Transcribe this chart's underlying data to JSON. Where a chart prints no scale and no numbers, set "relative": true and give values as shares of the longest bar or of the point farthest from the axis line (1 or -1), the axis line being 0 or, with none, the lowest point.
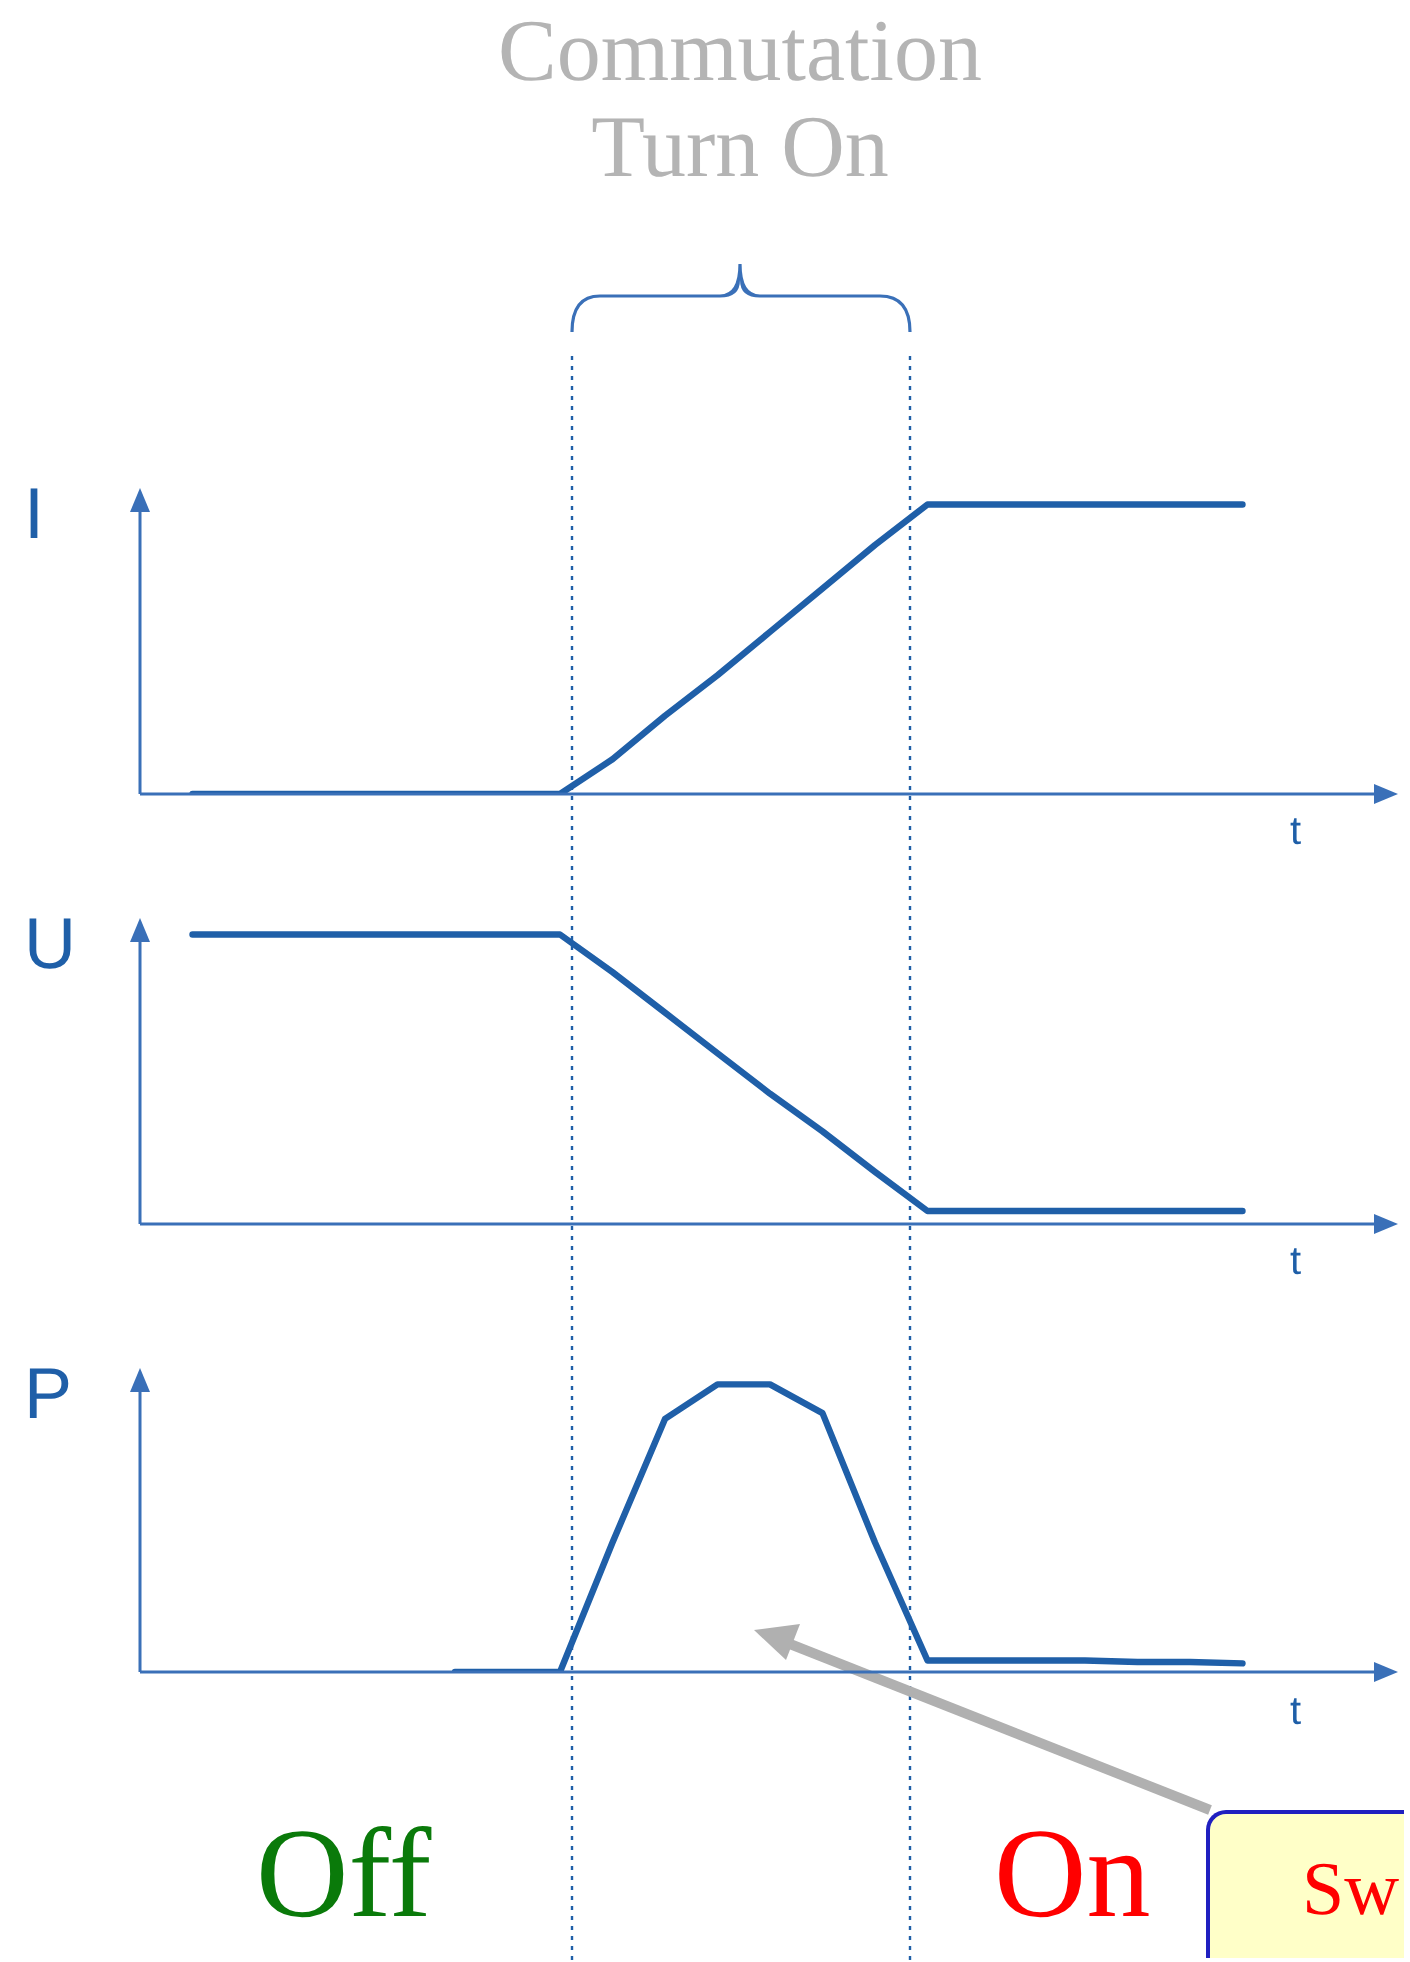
{
  "chart_data": [
    {
      "type": "line",
      "title": "Commutation Turn On",
      "ylabel": "I",
      "xlabel": "t",
      "relative": true,
      "legend": false,
      "marker": "none",
      "line_style": "solid",
      "categories": [
        null,
        null,
        null,
        null,
        null,
        null,
        null,
        null,
        null,
        null,
        null,
        null,
        null,
        null,
        null,
        null,
        null,
        null,
        null,
        null,
        null,
        null,
        null,
        null,
        null
      ],
      "series": [
        {
          "color": "#1f5fa8",
          "values": [
            null,
            0,
            0,
            0,
            0,
            0,
            0,
            0,
            0,
            0.12,
            0.27,
            0.41,
            0.56,
            0.71,
            0.86,
            1,
            1,
            1,
            1,
            1,
            1,
            1,
            null,
            null,
            null
          ]
        }
      ]
    },
    {
      "type": "line",
      "ylabel": "U",
      "xlabel": "t",
      "relative": true,
      "legend": false,
      "marker": "none",
      "line_style": "solid",
      "categories": [
        null,
        null,
        null,
        null,
        null,
        null,
        null,
        null,
        null,
        null,
        null,
        null,
        null,
        null,
        null,
        null,
        null,
        null,
        null,
        null,
        null,
        null,
        null,
        null,
        null
      ],
      "series": [
        {
          "color": "#1f5fa8",
          "values": [
            null,
            1,
            1,
            1,
            1,
            1,
            1,
            1,
            1,
            0.87,
            0.73,
            0.59,
            0.45,
            0.32,
            0.18,
            0.045,
            0.045,
            0.045,
            0.045,
            0.045,
            0.045,
            0.045,
            null,
            null,
            null
          ]
        }
      ]
    },
    {
      "type": "line",
      "ylabel": "P",
      "xlabel": "t",
      "relative": true,
      "legend": false,
      "marker": "none",
      "line_style": "solid",
      "categories": [
        null,
        null,
        null,
        null,
        null,
        null,
        null,
        null,
        null,
        null,
        null,
        null,
        null,
        null,
        null,
        null,
        null,
        null,
        null,
        null,
        null,
        null,
        null,
        null,
        null
      ],
      "series": [
        {
          "color": "#1f5fa8",
          "values": [
            null,
            null,
            null,
            null,
            null,
            null,
            0,
            0,
            0,
            0.45,
            0.88,
            1,
            1,
            0.9,
            0.45,
            0.04,
            0.04,
            0.04,
            0.04,
            0.035,
            0.035,
            0.03,
            null,
            null,
            null
          ]
        }
      ],
      "annotations": [
        "Off",
        "On",
        "Sw"
      ]
    }
  ]
}
